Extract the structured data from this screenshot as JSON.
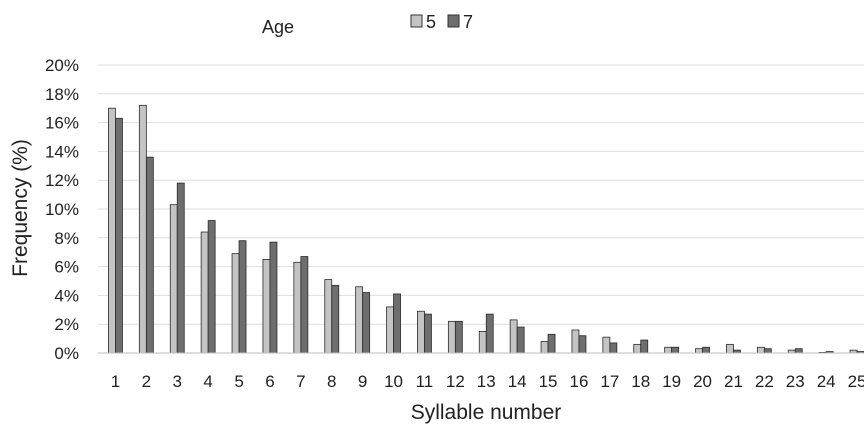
{
  "chart_data": {
    "type": "bar",
    "title": "",
    "xlabel": "Syllable number",
    "ylabel": "Frequency (%)",
    "legend_title": "Age",
    "legend_position": "top",
    "grid": true,
    "ylim": [
      0,
      20
    ],
    "yticks": [
      "0%",
      "2%",
      "4%",
      "6%",
      "8%",
      "10%",
      "12%",
      "14%",
      "16%",
      "18%",
      "20%"
    ],
    "categories": [
      "1",
      "2",
      "3",
      "4",
      "5",
      "6",
      "7",
      "8",
      "9",
      "10",
      "11",
      "12",
      "13",
      "14",
      "15",
      "16",
      "17",
      "18",
      "19",
      "20",
      "21",
      "22",
      "23",
      "24",
      "25"
    ],
    "series": [
      {
        "name": "5",
        "color": "#c4c4c4",
        "values": [
          17.0,
          17.2,
          10.3,
          8.4,
          6.9,
          6.5,
          6.3,
          5.1,
          4.6,
          3.2,
          2.9,
          2.2,
          1.5,
          2.3,
          0.8,
          1.6,
          1.1,
          0.6,
          0.4,
          0.3,
          0.6,
          0.4,
          0.2,
          0.0,
          0.2
        ]
      },
      {
        "name": "7",
        "color": "#6e6e6e",
        "values": [
          16.3,
          13.6,
          11.8,
          9.2,
          7.8,
          7.7,
          6.7,
          4.7,
          4.2,
          4.1,
          2.7,
          2.2,
          2.7,
          1.8,
          1.3,
          1.2,
          0.7,
          0.9,
          0.4,
          0.4,
          0.2,
          0.3,
          0.3,
          0.1,
          0.1
        ]
      }
    ]
  }
}
